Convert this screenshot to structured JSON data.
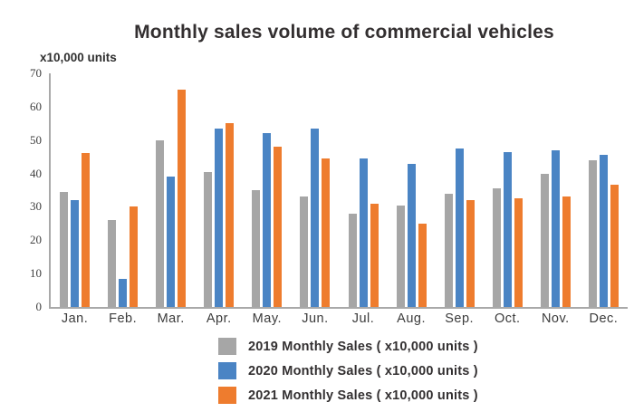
{
  "chart_data": {
    "type": "bar",
    "title": "Monthly sales volume of commercial vehicles",
    "ylabel": "x10,000 units",
    "xlabel": "",
    "ylim": [
      0,
      70
    ],
    "yticks": [
      70,
      60,
      50,
      40,
      30,
      20,
      10,
      0
    ],
    "grid": false,
    "legend_position": "bottom",
    "categories": [
      "Jan.",
      "Feb.",
      "Mar.",
      "Apr.",
      "May.",
      "Jun.",
      "Jul.",
      "Aug.",
      "Sep.",
      "Oct.",
      "Nov.",
      "Dec."
    ],
    "series": [
      {
        "name": "2019 Monthly Sales ( x10,000 units )",
        "color": "#a6a6a6",
        "values": [
          34.5,
          26,
          50,
          40.5,
          35,
          33,
          28,
          30.5,
          34,
          35.5,
          40,
          44
        ]
      },
      {
        "name": "2020 Monthly Sales ( x10,000 units )",
        "color": "#4a84c4",
        "values": [
          32,
          8.5,
          39,
          53.5,
          52,
          53.5,
          44.5,
          43,
          47.5,
          46.5,
          47,
          45.5
        ]
      },
      {
        "name": "2021 Monthly Sales ( x10,000 units )",
        "color": "#ee7c2e",
        "values": [
          46,
          30,
          65,
          55,
          48,
          44.5,
          31,
          25,
          32,
          32.5,
          33,
          36.5
        ]
      }
    ]
  }
}
